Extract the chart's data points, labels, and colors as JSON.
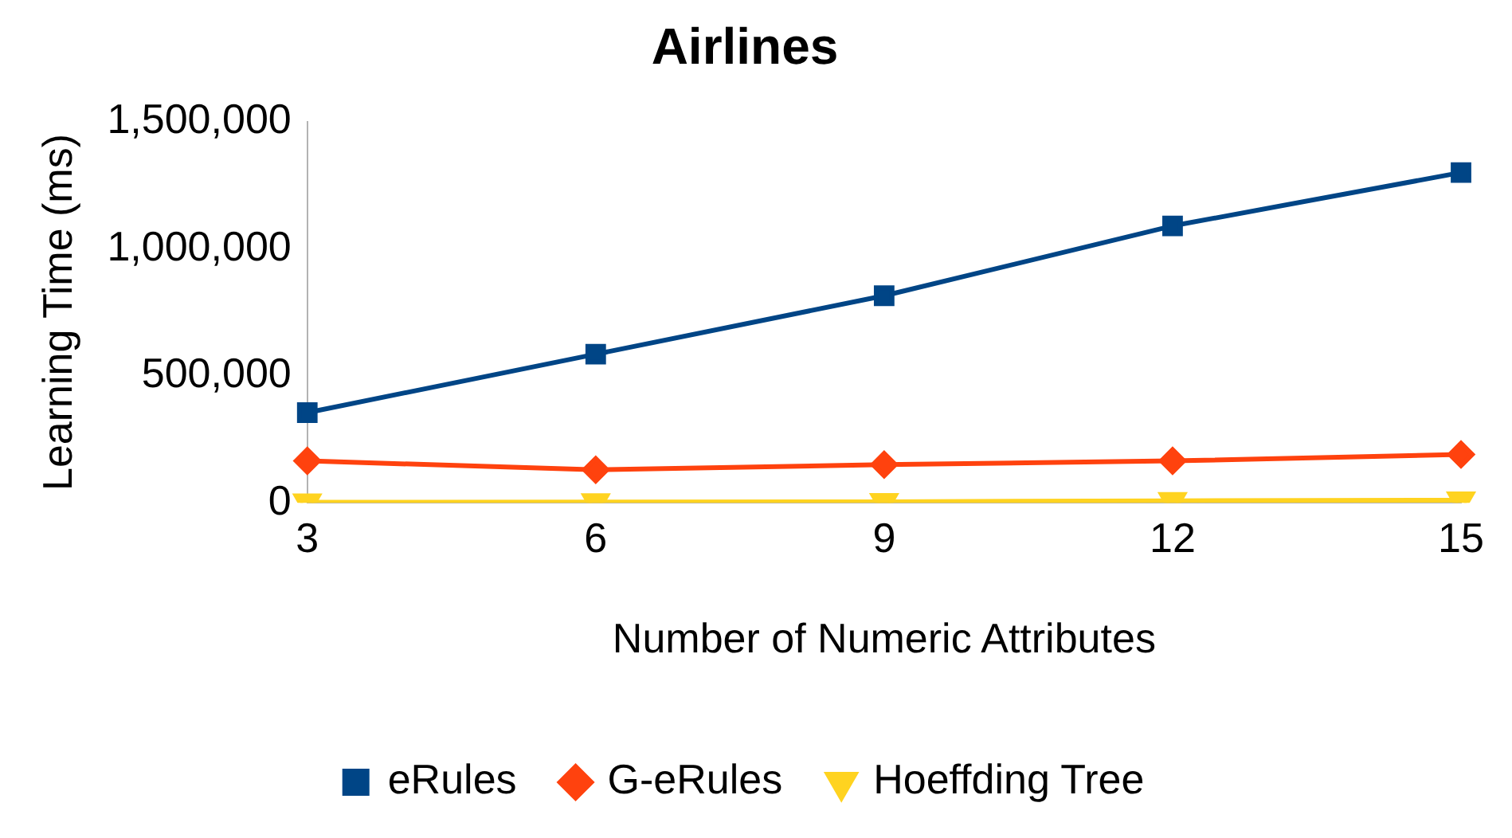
{
  "chart_data": {
    "type": "line",
    "title": "Airlines",
    "xlabel": "Number of Numeric Attributes",
    "ylabel": "Learning Time (ms)",
    "categories": [
      "3",
      "6",
      "9",
      "12",
      "15"
    ],
    "series": [
      {
        "name": "eRules",
        "color": "#004586",
        "marker": "square",
        "values": [
          355000,
          585000,
          815000,
          1090000,
          1300000
        ]
      },
      {
        "name": "G-eRules",
        "color": "#ff420e",
        "marker": "diamond",
        "values": [
          165000,
          130000,
          150000,
          165000,
          190000
        ]
      },
      {
        "name": "Hoeffding Tree",
        "color": "#ffd320",
        "marker": "triangle",
        "values": [
          2000,
          3000,
          4000,
          8000,
          10000
        ]
      }
    ],
    "ylim": [
      0,
      1500000
    ],
    "yticks": [
      {
        "value": 0,
        "label": "0"
      },
      {
        "value": 500000,
        "label": "500,000"
      },
      {
        "value": 1000000,
        "label": "1,000,000"
      },
      {
        "value": 1500000,
        "label": "1,500,000"
      }
    ],
    "grid": false,
    "legend": "bottom"
  }
}
